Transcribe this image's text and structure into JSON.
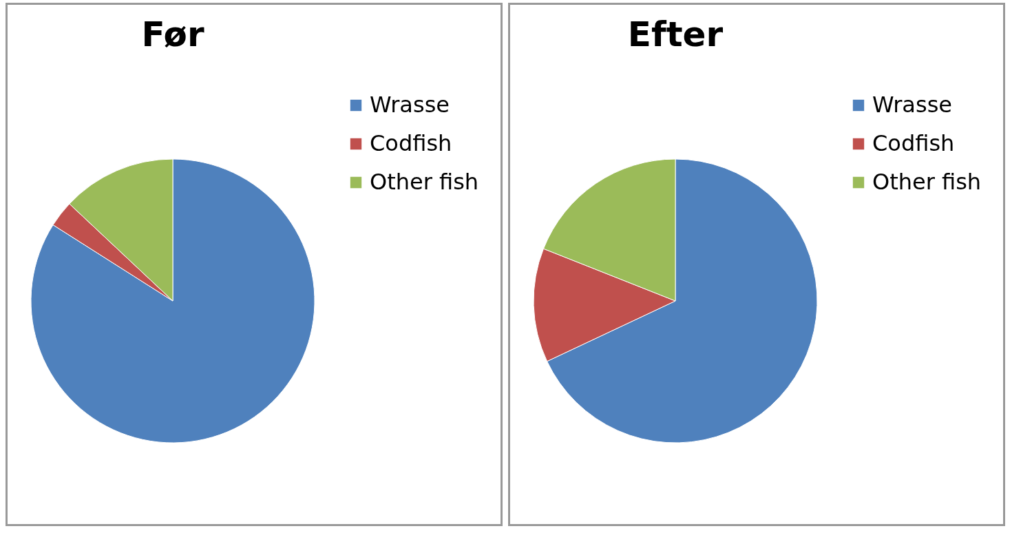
{
  "chart_data": [
    {
      "type": "pie",
      "title": "Før",
      "categories": [
        "Wrasse",
        "Codfish",
        "Other fish"
      ],
      "values": [
        84,
        3,
        13
      ],
      "colors": [
        "#4f81bd",
        "#c0504d",
        "#9bbb59"
      ],
      "legend": "right"
    },
    {
      "type": "pie",
      "title": "Efter",
      "categories": [
        "Wrasse",
        "Codfish",
        "Other fish"
      ],
      "values": [
        68,
        13,
        19
      ],
      "colors": [
        "#4f81bd",
        "#c0504d",
        "#9bbb59"
      ],
      "legend": "right"
    }
  ]
}
